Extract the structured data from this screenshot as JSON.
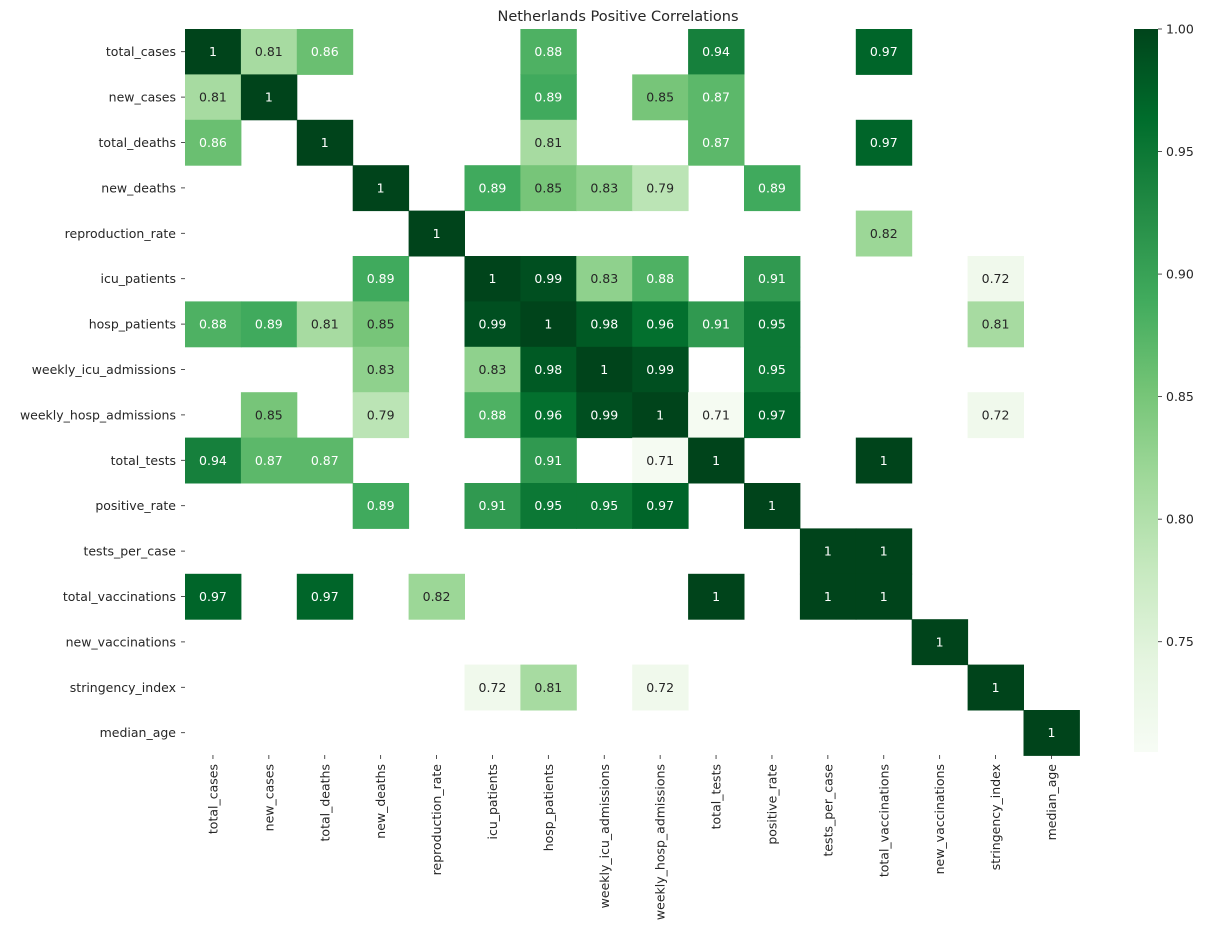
{
  "chart_data": {
    "type": "heatmap",
    "title": "Netherlands Positive Correlations",
    "variables": [
      "total_cases",
      "new_cases",
      "total_deaths",
      "new_deaths",
      "reproduction_rate",
      "icu_patients",
      "hosp_patients",
      "weekly_icu_admissions",
      "weekly_hosp_admissions",
      "total_tests",
      "positive_rate",
      "tests_per_case",
      "total_vaccinations",
      "new_vaccinations",
      "stringency_index",
      "median_age"
    ],
    "values": [
      [
        1,
        0.81,
        0.86,
        null,
        null,
        null,
        0.88,
        null,
        null,
        0.94,
        null,
        null,
        0.97,
        null,
        null,
        null
      ],
      [
        0.81,
        1,
        null,
        null,
        null,
        null,
        0.89,
        null,
        0.85,
        0.87,
        null,
        null,
        null,
        null,
        null,
        null
      ],
      [
        0.86,
        null,
        1,
        null,
        null,
        null,
        0.81,
        null,
        null,
        0.87,
        null,
        null,
        0.97,
        null,
        null,
        null
      ],
      [
        null,
        null,
        null,
        1,
        null,
        0.89,
        0.85,
        0.83,
        0.79,
        null,
        0.89,
        null,
        null,
        null,
        null,
        null
      ],
      [
        null,
        null,
        null,
        null,
        1,
        null,
        null,
        null,
        null,
        null,
        null,
        null,
        0.82,
        null,
        null,
        null
      ],
      [
        null,
        null,
        null,
        0.89,
        null,
        1,
        0.99,
        0.83,
        0.88,
        null,
        0.91,
        null,
        null,
        null,
        0.72,
        null
      ],
      [
        0.88,
        0.89,
        0.81,
        0.85,
        null,
        0.99,
        1,
        0.98,
        0.96,
        0.91,
        0.95,
        null,
        null,
        null,
        0.81,
        null
      ],
      [
        null,
        null,
        null,
        0.83,
        null,
        0.83,
        0.98,
        1,
        0.99,
        null,
        0.95,
        null,
        null,
        null,
        null,
        null
      ],
      [
        null,
        0.85,
        null,
        0.79,
        null,
        0.88,
        0.96,
        0.99,
        1,
        0.71,
        0.97,
        null,
        null,
        null,
        0.72,
        null
      ],
      [
        0.94,
        0.87,
        0.87,
        null,
        null,
        null,
        0.91,
        null,
        0.71,
        1,
        null,
        null,
        1,
        null,
        null,
        null
      ],
      [
        null,
        null,
        null,
        0.89,
        null,
        0.91,
        0.95,
        0.95,
        0.97,
        null,
        1,
        null,
        null,
        null,
        null,
        null
      ],
      [
        null,
        null,
        null,
        null,
        null,
        null,
        null,
        null,
        null,
        null,
        null,
        1,
        1,
        null,
        null,
        null
      ],
      [
        0.97,
        null,
        0.97,
        null,
        0.82,
        null,
        null,
        null,
        null,
        1,
        null,
        1,
        1,
        null,
        null,
        null
      ],
      [
        null,
        null,
        null,
        null,
        null,
        null,
        null,
        null,
        null,
        null,
        null,
        null,
        null,
        1,
        null,
        null
      ],
      [
        null,
        null,
        null,
        null,
        null,
        0.72,
        0.81,
        null,
        0.72,
        null,
        null,
        null,
        null,
        null,
        1,
        null
      ],
      [
        null,
        null,
        null,
        null,
        null,
        null,
        null,
        null,
        null,
        null,
        null,
        null,
        null,
        null,
        null,
        1
      ]
    ],
    "colorbar": {
      "range": [
        0.705,
        1.0
      ],
      "ticks": [
        "0.75",
        "0.80",
        "0.85",
        "0.90",
        "0.95",
        "1.00"
      ],
      "colormap": "Greens",
      "color_low": "#f7fcf5",
      "color_high": "#00441b"
    },
    "legend": "colorbar-right"
  }
}
